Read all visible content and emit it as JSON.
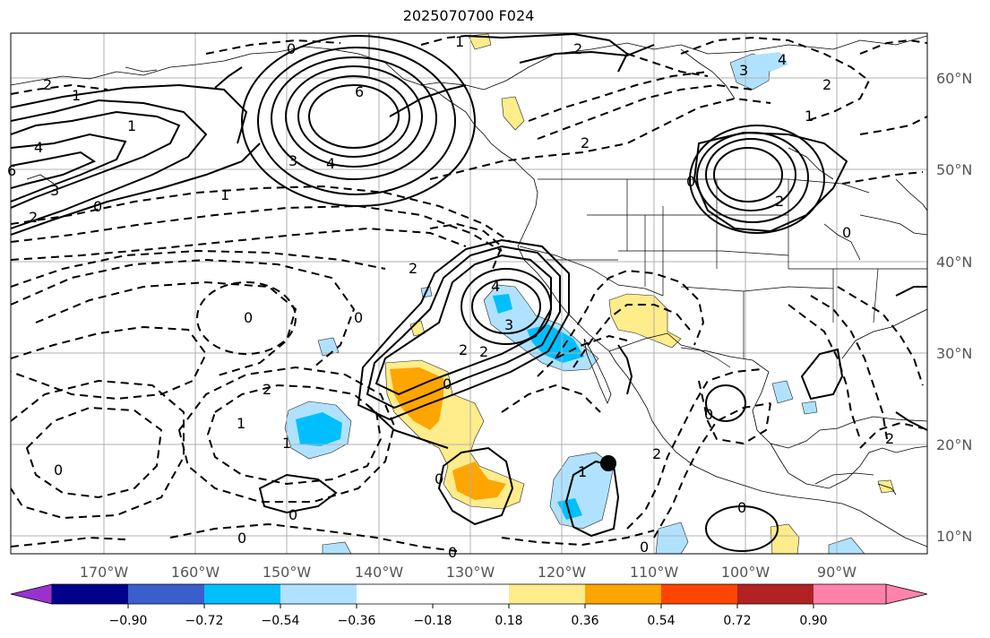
{
  "title": "2025070700 F024",
  "lon_labels": [
    "170°W",
    "160°W",
    "150°W",
    "140°W",
    "130°W",
    "120°W",
    "110°W",
    "100°W",
    "90°W"
  ],
  "lat_labels": [
    "60°N",
    "50°N",
    "40°N",
    "30°N",
    "20°N",
    "10°N"
  ],
  "colorbar": {
    "tick_labels": [
      "−0.90",
      "−0.72",
      "−0.54",
      "−0.36",
      "−0.18",
      "0.18",
      "0.36",
      "0.54",
      "0.72",
      "0.90"
    ],
    "colors": [
      "#9932cc",
      "#00008b",
      "#3a5fcd",
      "#00bfff",
      "#b0e2ff",
      "#ffffff",
      "#ffec8b",
      "#ffa500",
      "#ff4500",
      "#b22222",
      "#ff82ab"
    ]
  },
  "contour_labels": {
    "c1": "2",
    "c2": "1",
    "c3": "1",
    "c4": "4",
    "c5": "3",
    "c6": "2",
    "c7": "0",
    "c8": "0",
    "c9": "6",
    "c10": "3",
    "c11": "4",
    "c12": "1",
    "c13": "2",
    "c14": "1",
    "c15": "2",
    "c16": "3",
    "c17": "4",
    "c18": "2",
    "c19": "1",
    "c20": "0",
    "c21": "2",
    "c22": "0",
    "c23": "4",
    "c24": "3",
    "c25": "2",
    "c26": "2",
    "c27": "0",
    "c28": "2",
    "c29": "2",
    "c30": "1",
    "c31": "1",
    "c32": "0",
    "c33": "0",
    "c34": "0",
    "c35": "0",
    "c36": "1",
    "c37": "0",
    "c38": "0",
    "c39": "2",
    "c40": "0",
    "c41": "0",
    "c42": "0",
    "c43": "6",
    "c44": "2",
    "c45": "0"
  }
}
